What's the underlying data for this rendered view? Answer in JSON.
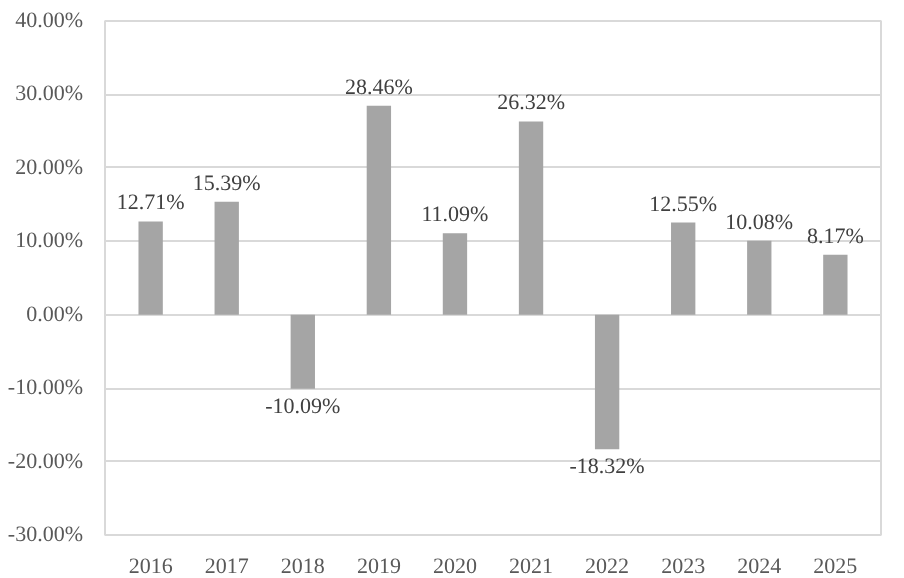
{
  "chart_data": {
    "type": "bar",
    "categories": [
      "2016",
      "2017",
      "2018",
      "2019",
      "2020",
      "2021",
      "2022",
      "2023",
      "2024",
      "2025"
    ],
    "values": [
      12.71,
      15.39,
      -10.09,
      28.46,
      11.09,
      26.32,
      -18.32,
      12.55,
      10.08,
      8.17
    ],
    "value_labels": [
      "12.71%",
      "15.39%",
      "-10.09%",
      "28.46%",
      "11.09%",
      "26.32%",
      "-18.32%",
      "12.55%",
      "10.08%",
      "8.17%"
    ],
    "color": "#a5a5a5",
    "ylim": [
      -30,
      40
    ],
    "yticks": [
      {
        "value": -30,
        "label": "-30.00%"
      },
      {
        "value": -20,
        "label": "-20.00%"
      },
      {
        "value": -10,
        "label": "-10.00%"
      },
      {
        "value": 0,
        "label": "0.00%"
      },
      {
        "value": 10,
        "label": "10.00%"
      },
      {
        "value": 20,
        "label": "20.00%"
      },
      {
        "value": 30,
        "label": "30.00%"
      },
      {
        "value": 40,
        "label": "40.00%"
      }
    ],
    "grid": "y"
  }
}
